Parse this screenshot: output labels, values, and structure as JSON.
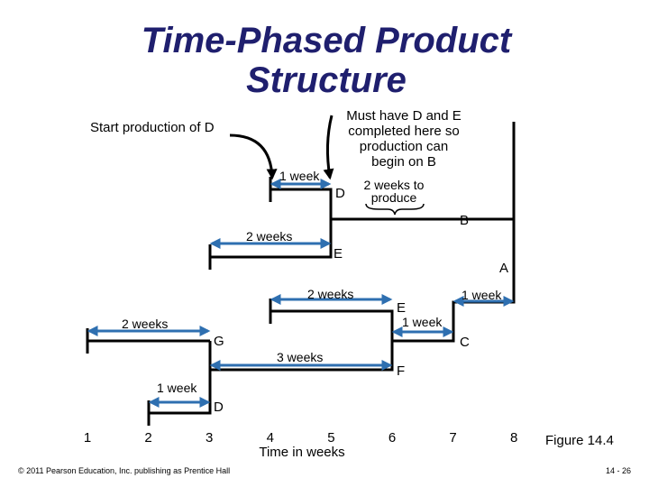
{
  "title_lines": [
    "Time-Phased Product",
    "Structure"
  ],
  "annotations": {
    "start_d": "Start production of D",
    "must_have": [
      "Must have D and E",
      "completed here so",
      "production can",
      "begin on B"
    ],
    "produce": [
      "2 weeks to",
      "produce"
    ]
  },
  "items": [
    "D",
    "B",
    "E",
    "A",
    "E",
    "G",
    "C",
    "F",
    "D"
  ],
  "durations": [
    "1 week",
    "2 weeks",
    "2 weeks",
    "1 week",
    "2 weeks",
    "1 week",
    "3 weeks",
    "1 week"
  ],
  "axis": {
    "ticks": [
      "1",
      "2",
      "3",
      "4",
      "5",
      "6",
      "7",
      "8"
    ],
    "title": "Time in weeks"
  },
  "figure": "Figure 14.4",
  "footer": "© 2011 Pearson Education, Inc. publishing as Prentice Hall",
  "page": "14 - 26"
}
